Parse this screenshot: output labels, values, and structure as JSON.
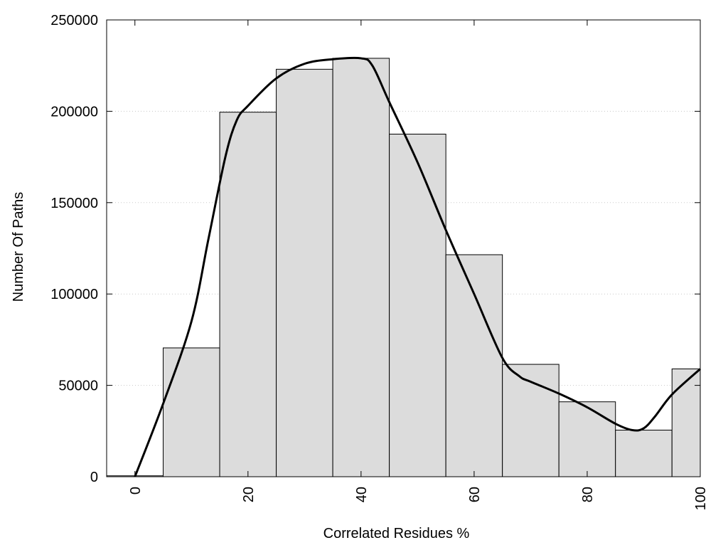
{
  "chart_data": {
    "type": "bar",
    "subtype": "histogram_with_smoothed_line",
    "xlabel": "Correlated Residues %",
    "ylabel": "Number Of Paths",
    "xlim": [
      -5,
      100
    ],
    "ylim": [
      0,
      250000
    ],
    "x_ticks": [
      "0",
      "20",
      "40",
      "60",
      "80",
      "100"
    ],
    "x_tick_values": [
      0,
      20,
      40,
      60,
      80,
      100
    ],
    "y_ticks": [
      "0",
      "50000",
      "100000",
      "150000",
      "200000",
      "250000"
    ],
    "y_tick_values": [
      0,
      50000,
      100000,
      150000,
      200000,
      250000
    ],
    "grid": "horizontal dotted",
    "legend": "none",
    "bar_color": "#dcdcdc",
    "line_color": "#000000",
    "bins": [
      {
        "start": -5,
        "end": 5,
        "value": 500
      },
      {
        "start": 5,
        "end": 15,
        "value": 70500
      },
      {
        "start": 15,
        "end": 25,
        "value": 199500
      },
      {
        "start": 25,
        "end": 35,
        "value": 223000
      },
      {
        "start": 35,
        "end": 45,
        "value": 229000
      },
      {
        "start": 45,
        "end": 55,
        "value": 187500
      },
      {
        "start": 55,
        "end": 65,
        "value": 121500
      },
      {
        "start": 65,
        "end": 75,
        "value": 61500
      },
      {
        "start": 75,
        "end": 85,
        "value": 41000
      },
      {
        "start": 85,
        "end": 95,
        "value": 25500
      },
      {
        "start": 95,
        "end": 100,
        "value": 59000
      }
    ],
    "curve": {
      "x": [
        0,
        5,
        10,
        13,
        16,
        18,
        20,
        25,
        30,
        35,
        40,
        42,
        45,
        50,
        55,
        60,
        65,
        68,
        70,
        75,
        80,
        85,
        88,
        90,
        92,
        95,
        100
      ],
      "y": [
        0,
        40000,
        85000,
        130000,
        175000,
        195000,
        203000,
        218000,
        226000,
        228500,
        229000,
        225000,
        205000,
        172000,
        135000,
        100000,
        65000,
        55000,
        52000,
        45500,
        38000,
        29000,
        25500,
        26500,
        33000,
        45000,
        59000
      ]
    }
  }
}
